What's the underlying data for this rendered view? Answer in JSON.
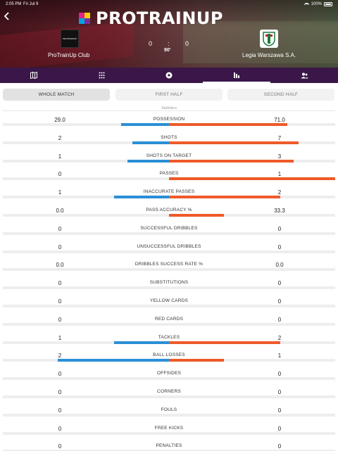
{
  "status_bar": {
    "time": "2:05 PM",
    "date": "Fri Jul 9",
    "battery": "100%"
  },
  "header": {
    "brand": "PROTRAINUP",
    "home_team": "ProTrainUp  Club",
    "home_logo_text": "PROTRAINUP",
    "away_team": "Legia Warszawa S.A.",
    "score_home": "0",
    "score_sep": ":",
    "score_away": "0",
    "minute": "90'"
  },
  "nav": {
    "items": [
      {
        "icon": "map-icon",
        "glyph": "▥"
      },
      {
        "icon": "lineup-grid-icon",
        "glyph": "⠿"
      },
      {
        "icon": "football-icon",
        "glyph": "⚽"
      },
      {
        "icon": "stats-icon",
        "glyph": "⫶"
      },
      {
        "icon": "players-icon",
        "glyph": "👥"
      }
    ],
    "active_index": 3
  },
  "tabs": [
    "WHOLE MATCH",
    "FIRST HALF",
    "SECOND HALF"
  ],
  "active_tab": 0,
  "section_label": "Statistics",
  "colors": {
    "home": "#2b8fd6",
    "away": "#ee5a2a",
    "nav": "#3a1748"
  },
  "stats": [
    {
      "label": "POSSESSION",
      "home": "29.0",
      "away": "71.0",
      "home_frac": 0.29,
      "away_frac": 0.71
    },
    {
      "label": "SHOTS",
      "home": "2",
      "away": "7",
      "home_frac": 0.22,
      "away_frac": 0.78
    },
    {
      "label": "SHOTS ON TARGET",
      "home": "1",
      "away": "3",
      "home_frac": 0.25,
      "away_frac": 0.75
    },
    {
      "label": "PASSES",
      "home": "0",
      "away": "1",
      "home_frac": 0.0,
      "away_frac": 1.0
    },
    {
      "label": "INACCURATE PASSES",
      "home": "1",
      "away": "2",
      "home_frac": 0.33,
      "away_frac": 0.67
    },
    {
      "label": "PASS ACCURACY %",
      "home": "0.0",
      "away": "33.3",
      "home_frac": 0.0,
      "away_frac": 0.33
    },
    {
      "label": "SUCCESSFUL DRIBBLES",
      "home": "0",
      "away": "0",
      "home_frac": 0,
      "away_frac": 0
    },
    {
      "label": "UNSUCCESSFUL DRIBBLES",
      "home": "0",
      "away": "0",
      "home_frac": 0,
      "away_frac": 0
    },
    {
      "label": "DRIBBLES SUCCESS RATE %",
      "home": "0.0",
      "away": "0.0",
      "home_frac": 0,
      "away_frac": 0
    },
    {
      "label": "SUBSTITUTIONS",
      "home": "0",
      "away": "0",
      "home_frac": 0,
      "away_frac": 0
    },
    {
      "label": "YELLOW CARDS",
      "home": "0",
      "away": "0",
      "home_frac": 0,
      "away_frac": 0
    },
    {
      "label": "RED CARDS",
      "home": "0",
      "away": "0",
      "home_frac": 0,
      "away_frac": 0
    },
    {
      "label": "TACKLES",
      "home": "1",
      "away": "2",
      "home_frac": 0.33,
      "away_frac": 0.67
    },
    {
      "label": "BALL LOSSES",
      "home": "2",
      "away": "1",
      "home_frac": 0.67,
      "away_frac": 0.33
    },
    {
      "label": "OFFSIDES",
      "home": "0",
      "away": "0",
      "home_frac": 0,
      "away_frac": 0
    },
    {
      "label": "CORNERS",
      "home": "0",
      "away": "0",
      "home_frac": 0,
      "away_frac": 0
    },
    {
      "label": "FOULS",
      "home": "0",
      "away": "0",
      "home_frac": 0,
      "away_frac": 0
    },
    {
      "label": "FREE KICKS",
      "home": "0",
      "away": "0",
      "home_frac": 0,
      "away_frac": 0
    },
    {
      "label": "PENALTIES",
      "home": "0",
      "away": "0",
      "home_frac": 0,
      "away_frac": 0
    }
  ]
}
